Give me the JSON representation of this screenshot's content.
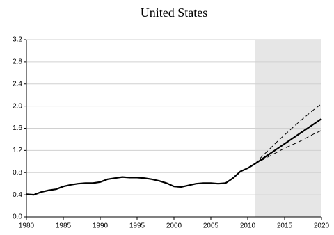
{
  "chart_data": {
    "type": "line",
    "title": "United States",
    "x": [
      1980,
      1981,
      1982,
      1983,
      1984,
      1985,
      1986,
      1987,
      1988,
      1989,
      1990,
      1991,
      1992,
      1993,
      1994,
      1995,
      1996,
      1997,
      1998,
      1999,
      2000,
      2001,
      2002,
      2003,
      2004,
      2005,
      2006,
      2007,
      2008,
      2009,
      2010,
      2011,
      2012,
      2013,
      2014,
      2015,
      2016,
      2017,
      2018,
      2019,
      2020
    ],
    "series": [
      {
        "color": "#000000",
        "dash": "solid",
        "width": 2.2,
        "values": [
          0.41,
          0.4,
          0.45,
          0.48,
          0.5,
          0.55,
          0.58,
          0.6,
          0.61,
          0.61,
          0.63,
          0.68,
          0.7,
          0.72,
          0.71,
          0.71,
          0.7,
          0.68,
          0.65,
          0.61,
          0.55,
          0.54,
          0.57,
          0.6,
          0.61,
          0.61,
          0.6,
          0.61,
          0.7,
          0.82,
          0.88,
          0.96,
          1.05,
          1.14,
          1.23,
          1.32,
          1.41,
          1.5,
          1.59,
          1.68,
          1.77
        ]
      },
      {
        "color": "#000000",
        "dash": "dashed",
        "width": 1,
        "values": [
          null,
          null,
          null,
          null,
          null,
          null,
          null,
          null,
          null,
          null,
          null,
          null,
          null,
          null,
          null,
          null,
          null,
          null,
          null,
          null,
          null,
          null,
          null,
          null,
          null,
          null,
          null,
          null,
          null,
          null,
          null,
          0.96,
          1.1,
          1.23,
          1.36,
          1.48,
          1.6,
          1.72,
          1.83,
          1.94,
          2.04
        ]
      },
      {
        "color": "#000000",
        "dash": "dashed",
        "width": 1,
        "values": [
          null,
          null,
          null,
          null,
          null,
          null,
          null,
          null,
          null,
          null,
          null,
          null,
          null,
          null,
          null,
          null,
          null,
          null,
          null,
          null,
          null,
          null,
          null,
          null,
          null,
          null,
          null,
          null,
          null,
          null,
          null,
          0.96,
          1.03,
          1.1,
          1.17,
          1.24,
          1.3,
          1.36,
          1.43,
          1.5,
          1.56
        ]
      }
    ],
    "shade_x": [
      2011,
      2020
    ],
    "shade_color": "#e6e6e6",
    "xlim": [
      1980,
      2020
    ],
    "xticks": [
      1980,
      1985,
      1990,
      1995,
      2000,
      2005,
      2010,
      2015,
      2020
    ],
    "ylim": [
      0,
      3.2
    ],
    "yticks": [
      {
        "value": 0,
        "label": "0.0"
      },
      0.4,
      0.8,
      1.2,
      1.6,
      {
        "value": 2,
        "label": "2.0"
      },
      2.4,
      2.8,
      3.2
    ],
    "grid": true
  }
}
